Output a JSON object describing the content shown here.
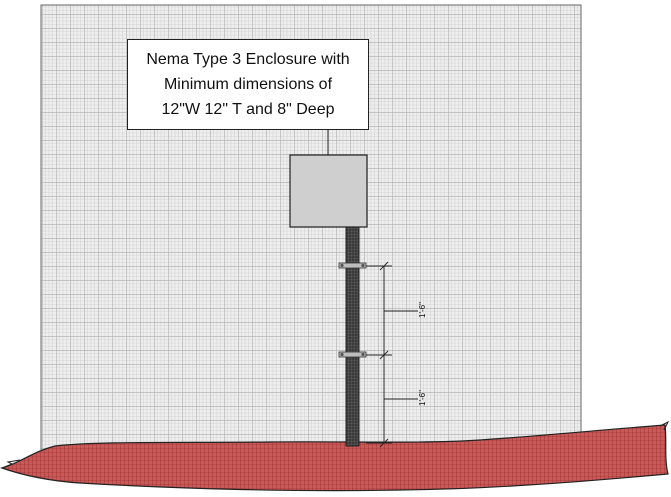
{
  "callout": {
    "lines": [
      "Nema Type 3 Enclosure with",
      "Minimum dimensions of",
      "12\"W 12\" T and 8\" Deep"
    ]
  },
  "dimensions": {
    "upper_label": "1'-6\"",
    "lower_label": "1'-6\""
  },
  "colors": {
    "wall_bg": "#eeeeee",
    "wall_grid_major": "#b8b8b8",
    "wall_grid_minor": "#d4d4d4",
    "enclosure_fill": "#cfcfcf",
    "post_fill": "#444444",
    "ground_fill": "#c85a5a",
    "ground_grid": "#8e2020",
    "line": "#222222"
  }
}
